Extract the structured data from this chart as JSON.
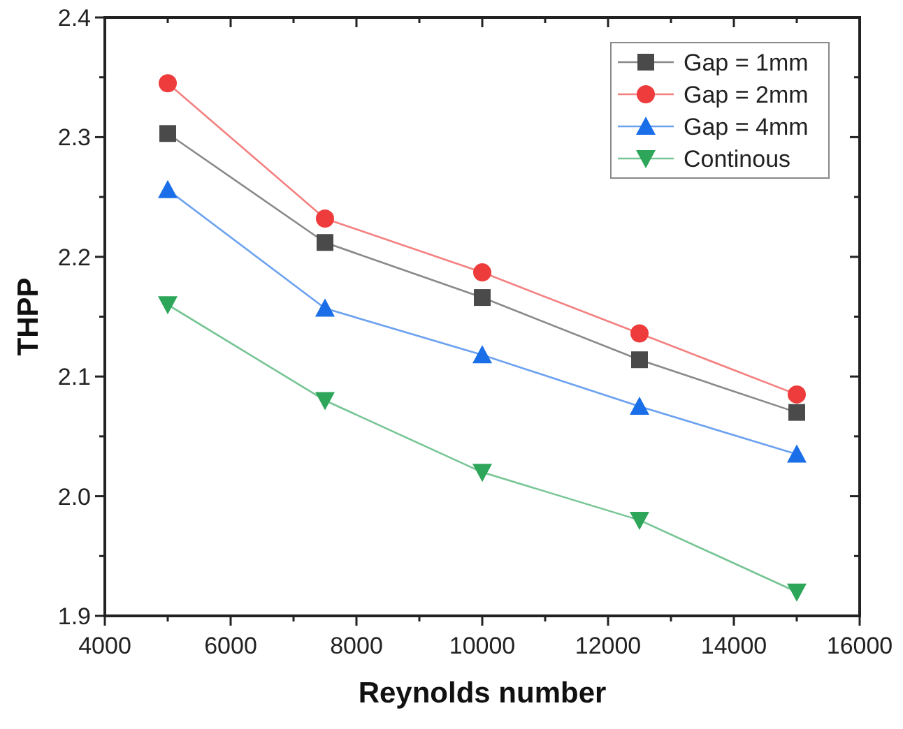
{
  "chart_data": {
    "type": "line",
    "xlabel": "Reynolds number",
    "ylabel": "THPP",
    "x": [
      5000,
      7500,
      10000,
      12500,
      15000
    ],
    "series": [
      {
        "name": "Gap = 1mm",
        "color": "#4a4a4a",
        "marker": "square",
        "values": [
          2.303,
          2.212,
          2.166,
          2.114,
          2.07
        ]
      },
      {
        "name": "Gap = 2mm",
        "color": "#ee3b3b",
        "marker": "circle",
        "values": [
          2.345,
          2.232,
          2.187,
          2.136,
          2.085
        ]
      },
      {
        "name": "Gap = 4mm",
        "color": "#1a6ee8",
        "marker": "triangle",
        "values": [
          2.256,
          2.157,
          2.118,
          2.075,
          2.035
        ]
      },
      {
        "name": "Continous",
        "color": "#2ea65a",
        "marker": "triangle-down",
        "values": [
          2.16,
          2.08,
          2.02,
          1.98,
          1.92
        ]
      }
    ],
    "xlim": [
      4000,
      16000
    ],
    "xticks": [
      4000,
      {
        "value": 5000,
        "label": null
      },
      6000,
      {
        "value": 7000,
        "label": null
      },
      8000,
      {
        "value": 9000,
        "label": null
      },
      10000,
      {
        "value": 11000,
        "label": null
      },
      12000,
      {
        "value": 13000,
        "label": null
      },
      14000,
      {
        "value": 15000,
        "label": null
      },
      16000
    ],
    "ylim": [
      1.9,
      2.4
    ],
    "yticks": [
      {
        "value": 1.9,
        "label": "1.9"
      },
      {
        "value": 1.95,
        "label": null
      },
      {
        "value": 2.0,
        "label": "2.0"
      },
      {
        "value": 2.05,
        "label": null
      },
      {
        "value": 2.1,
        "label": "2.1"
      },
      {
        "value": 2.15,
        "label": null
      },
      {
        "value": 2.2,
        "label": "2.2"
      },
      {
        "value": 2.25,
        "label": null
      },
      {
        "value": 2.3,
        "label": "2.3"
      },
      {
        "value": 2.35,
        "label": null
      },
      {
        "value": 2.4,
        "label": "2.4"
      }
    ],
    "legend": "top right",
    "grid": false,
    "line_style": "solid"
  }
}
